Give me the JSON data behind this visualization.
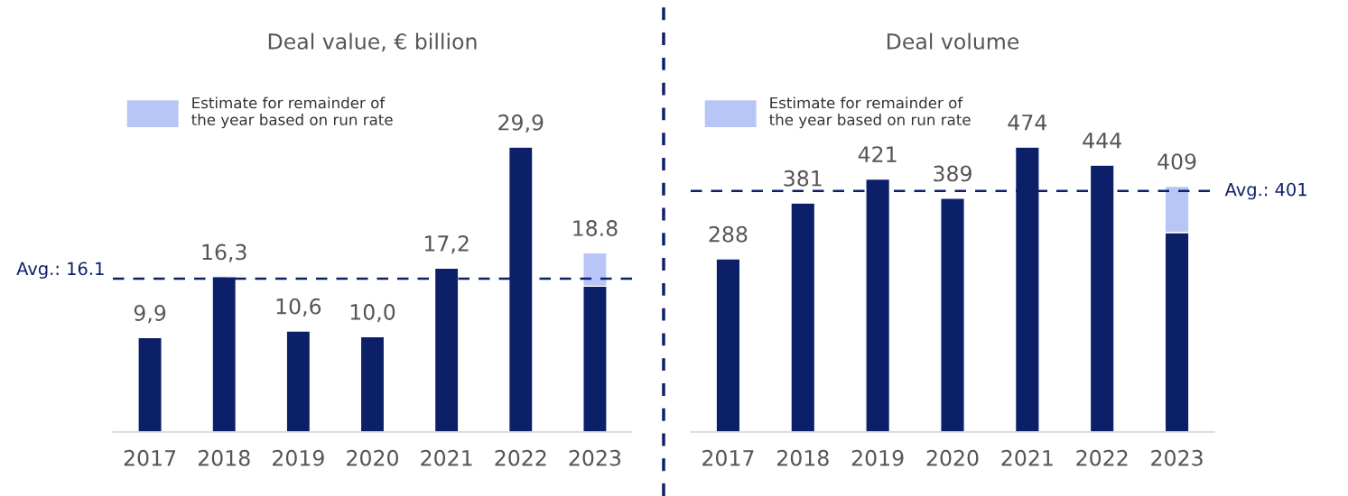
{
  "chart_data": [
    {
      "type": "bar",
      "title": "Deal value, € billion",
      "categories": [
        "2017",
        "2018",
        "2019",
        "2020",
        "2021",
        "2022",
        "2023"
      ],
      "stacked": true,
      "series": [
        {
          "color": "#0c2069",
          "values": [
            9.9,
            16.3,
            10.6,
            10.0,
            17.2,
            29.9,
            15.3
          ],
          "value_labels": [
            "9,9",
            "16,3",
            "10,6",
            "10,0",
            "17,2",
            "29,9",
            null
          ]
        },
        {
          "name": "Estimate for remainder of the year based on run rate",
          "color": "#b7c6f7",
          "values": [
            null,
            null,
            null,
            null,
            null,
            null,
            3.5
          ]
        }
      ],
      "totals": [
        null,
        null,
        null,
        null,
        null,
        null,
        "18.8"
      ],
      "ref_lines": [
        {
          "axis": "y",
          "value": 16.1,
          "label": "Avg.: 16.1",
          "color": "#0c2069",
          "line_style": "dashed"
        }
      ],
      "legend": "top left",
      "grid": false
    },
    {
      "type": "bar",
      "title": "Deal volume",
      "categories": [
        "2017",
        "2018",
        "2019",
        "2020",
        "2021",
        "2022",
        "2023"
      ],
      "stacked": true,
      "series": [
        {
          "color": "#0c2069",
          "values": [
            288,
            381,
            421,
            389,
            474,
            444,
            332
          ],
          "value_labels": [
            "288",
            "381",
            "421",
            "389",
            "474",
            "444",
            null
          ]
        },
        {
          "name": "Estimate for remainder of the year based on run rate",
          "color": "#b7c6f7",
          "values": [
            null,
            null,
            null,
            null,
            null,
            null,
            77
          ]
        }
      ],
      "totals": [
        null,
        null,
        null,
        null,
        null,
        null,
        "409"
      ],
      "ref_lines": [
        {
          "axis": "y",
          "value": 401,
          "label": "Avg.: 401",
          "color": "#0c2069",
          "line_style": "dashed"
        }
      ],
      "legend": "top left",
      "grid": false
    }
  ]
}
